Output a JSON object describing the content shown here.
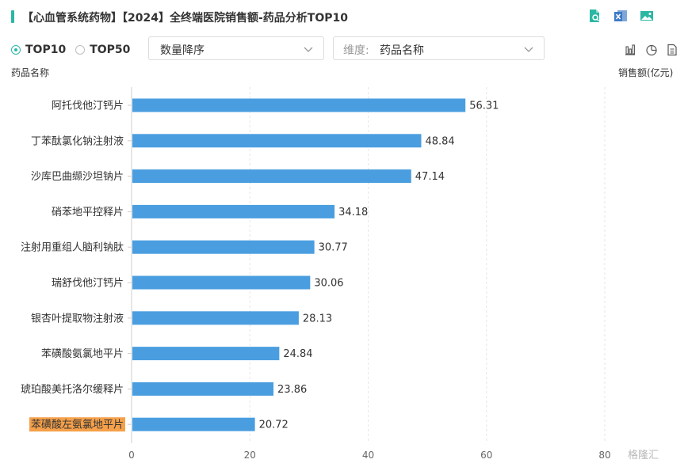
{
  "header": {
    "title": "【心血管系统药物】【2024】全终端医院销售额-药品分析TOP10",
    "tools": [
      "search-doc-icon",
      "excel-export-icon",
      "image-export-icon"
    ]
  },
  "controls": {
    "radios": [
      {
        "label": "TOP10",
        "checked": true
      },
      {
        "label": "TOP50",
        "checked": false
      }
    ],
    "sort_select": {
      "value": "数量降序"
    },
    "dimension_select": {
      "prefix": "维度:",
      "value": "药品名称"
    },
    "views": [
      "bar-chart-icon",
      "pie-chart-icon",
      "table-doc-icon"
    ]
  },
  "chart_data": {
    "type": "bar",
    "orientation": "horizontal",
    "ylabel": "药品名称",
    "xlabel": "销售额(亿元)",
    "categories": [
      "阿托伐他汀钙片",
      "丁苯酞氯化钠注射液",
      "沙库巴曲缬沙坦钠片",
      "硝苯地平控释片",
      "注射用重组人脑利钠肽",
      "瑞舒伐他汀钙片",
      "银杏叶提取物注射液",
      "苯磺酸氨氯地平片",
      "琥珀酸美托洛尔缓释片",
      "苯磺酸左氨氯地平片"
    ],
    "values": [
      56.31,
      48.84,
      47.14,
      34.18,
      30.77,
      30.06,
      28.13,
      24.84,
      23.86,
      20.72
    ],
    "value_labels": [
      "56.31",
      "48.84",
      "47.14",
      "34.18",
      "30.77",
      "30.06",
      "28.13",
      "24.84",
      "23.86",
      "20.72"
    ],
    "xticks": [
      "0",
      "20",
      "40",
      "60",
      "80"
    ],
    "xlim": [
      0,
      80
    ],
    "grid": true,
    "bar_color": "#4a9ee0",
    "highlight_index": 9,
    "highlight_color": "#f5a04a"
  },
  "watermark": "格隆汇"
}
